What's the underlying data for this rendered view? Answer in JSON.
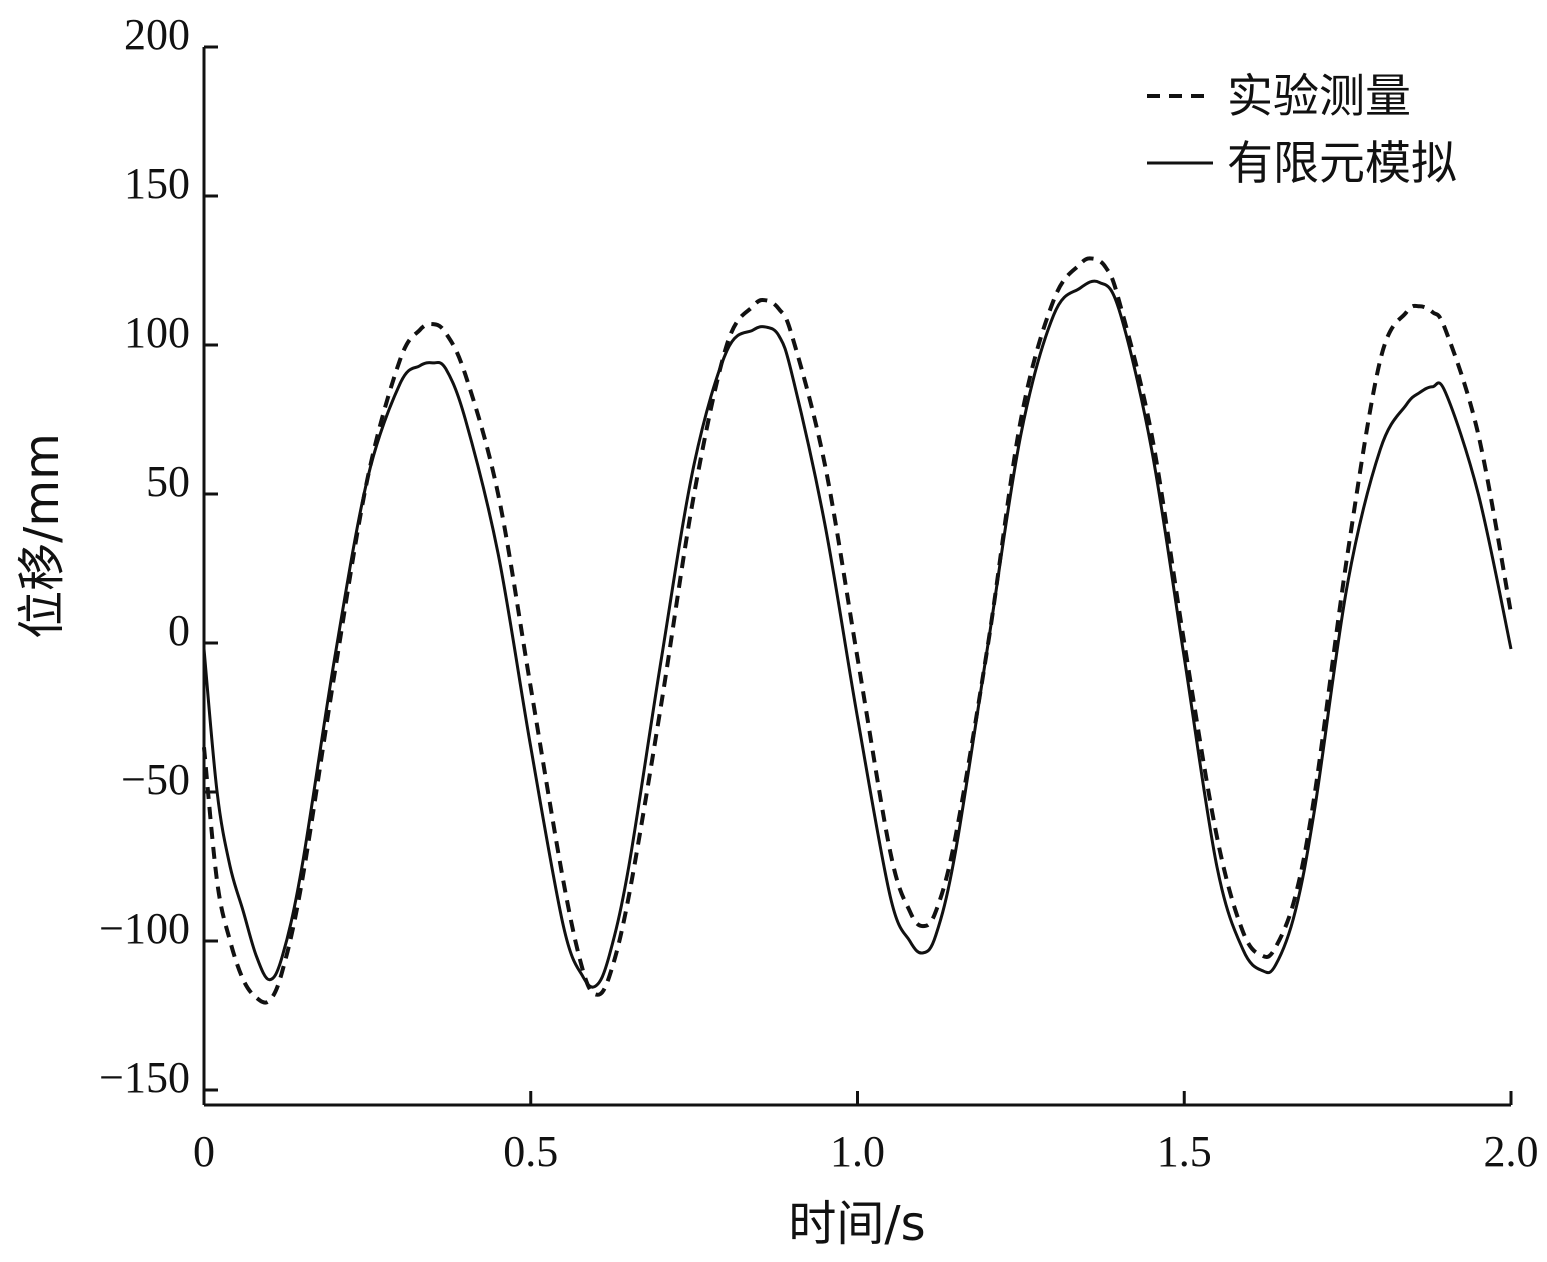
{
  "chart_data": {
    "type": "line",
    "title": "",
    "xlabel": "时间/s",
    "ylabel": "位移/mm",
    "xlim": [
      0,
      2.0
    ],
    "ylim": [
      -155,
      200
    ],
    "xticks": [
      0,
      0.5,
      1.0,
      1.5,
      2.0
    ],
    "xtick_labels": [
      "0",
      "0.5",
      "1.0",
      "1.5",
      "2.0"
    ],
    "yticks": [
      -150,
      -100,
      -50,
      0,
      50,
      100,
      150,
      200
    ],
    "ytick_labels": [
      "−150",
      "−100",
      "−50",
      "0",
      "50",
      "100",
      "150",
      "200"
    ],
    "grid": false,
    "legend_position": "top-right",
    "series": [
      {
        "name": "实验测量",
        "style": "dashed",
        "color": "#111111",
        "x": [
          0,
          0.02,
          0.04,
          0.06,
          0.08,
          0.1,
          0.12,
          0.15,
          0.2,
          0.25,
          0.3,
          0.33,
          0.35,
          0.37,
          0.4,
          0.45,
          0.5,
          0.55,
          0.58,
          0.6,
          0.62,
          0.65,
          0.7,
          0.75,
          0.8,
          0.84,
          0.86,
          0.88,
          0.9,
          0.95,
          1.0,
          1.05,
          1.08,
          1.1,
          1.12,
          1.15,
          1.2,
          1.25,
          1.3,
          1.34,
          1.36,
          1.38,
          1.4,
          1.45,
          1.5,
          1.55,
          1.59,
          1.62,
          1.64,
          1.67,
          1.7,
          1.75,
          1.8,
          1.84,
          1.86,
          1.88,
          1.9,
          1.95,
          2.0
        ],
        "y": [
          -35,
          -80,
          -100,
          -113,
          -119,
          -120,
          -110,
          -80,
          -10,
          55,
          95,
          105,
          107,
          104,
          90,
          50,
          -15,
          -80,
          -110,
          -118,
          -112,
          -85,
          -20,
          50,
          100,
          113,
          115,
          112,
          103,
          60,
          -5,
          -70,
          -90,
          -95,
          -90,
          -65,
          0,
          75,
          115,
          127,
          129,
          126,
          115,
          70,
          0,
          -65,
          -97,
          -105,
          -102,
          -85,
          -50,
          30,
          95,
          111,
          113,
          111,
          105,
          70,
          10
        ]
      },
      {
        "name": "有限元模拟",
        "style": "solid",
        "color": "#111111",
        "x": [
          0,
          0.02,
          0.04,
          0.06,
          0.08,
          0.1,
          0.12,
          0.15,
          0.2,
          0.25,
          0.3,
          0.33,
          0.35,
          0.37,
          0.4,
          0.45,
          0.5,
          0.55,
          0.58,
          0.6,
          0.62,
          0.65,
          0.7,
          0.75,
          0.8,
          0.84,
          0.86,
          0.88,
          0.9,
          0.95,
          1.0,
          1.05,
          1.08,
          1.1,
          1.12,
          1.15,
          1.2,
          1.25,
          1.3,
          1.34,
          1.37,
          1.4,
          1.45,
          1.5,
          1.55,
          1.59,
          1.62,
          1.64,
          1.67,
          1.7,
          1.75,
          1.8,
          1.84,
          1.86,
          1.88,
          1.9,
          1.95,
          2.0
        ],
        "y": [
          -2,
          -50,
          -75,
          -90,
          -105,
          -113,
          -105,
          -75,
          -5,
          55,
          87,
          93,
          94,
          92,
          75,
          30,
          -35,
          -95,
          -112,
          -115,
          -105,
          -75,
          -5,
          60,
          98,
          105,
          106,
          103,
          90,
          40,
          -25,
          -85,
          -100,
          -104,
          -98,
          -70,
          0,
          70,
          110,
          119,
          121,
          112,
          65,
          -5,
          -75,
          -103,
          -110,
          -108,
          -90,
          -55,
          20,
          65,
          80,
          84,
          86,
          84,
          50,
          -2
        ]
      }
    ]
  }
}
